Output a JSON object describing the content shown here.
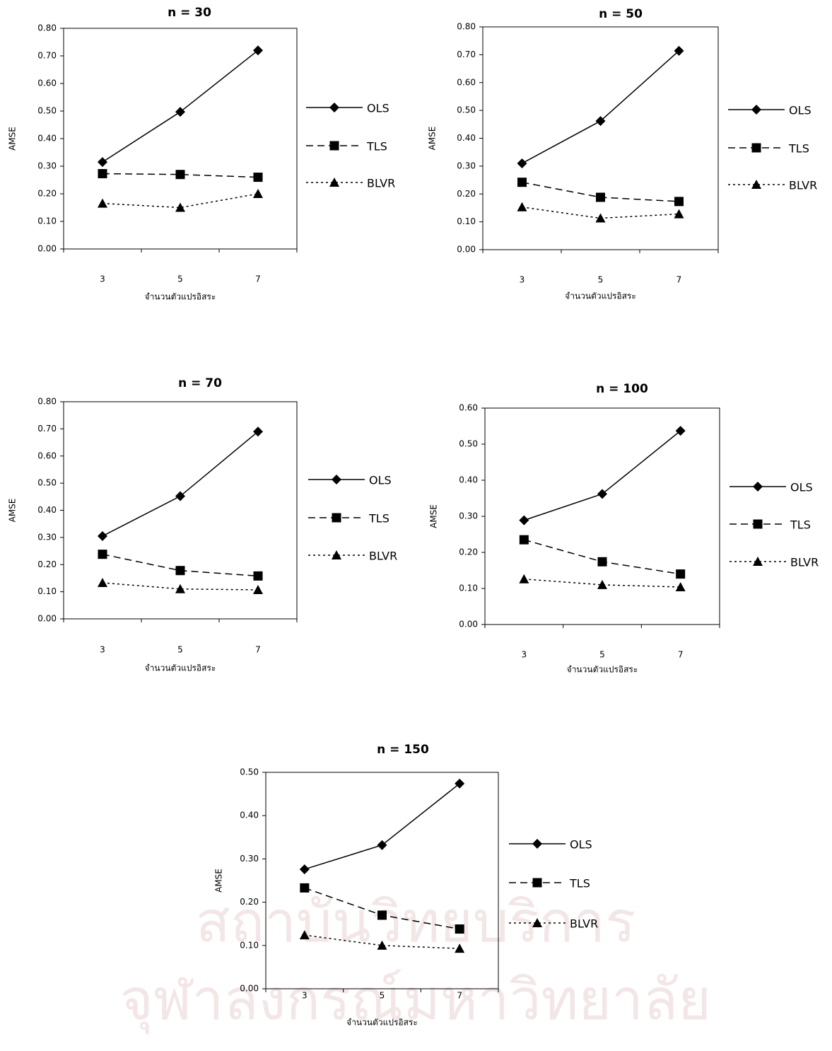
{
  "watermark": [
    "สถาบันวิทยบริการ",
    "จุฬาลงกรณ์มหาวิทยาลัย"
  ],
  "chart_data": [
    {
      "type": "line",
      "title": "n = 30",
      "x_label": "จำนวนตัวแปรอิสระ",
      "y_label": "AMSE",
      "legend": "right",
      "categories": [
        "3",
        "5",
        "7"
      ],
      "ylim": [
        0,
        0.8
      ],
      "yticks": [
        {
          "value": 0,
          "label": "0.00"
        },
        {
          "value": 0.1,
          "label": "0.10"
        },
        {
          "value": 0.2,
          "label": "0.20"
        },
        {
          "value": 0.3,
          "label": "0.30"
        },
        {
          "value": 0.4,
          "label": "0.40"
        },
        {
          "value": 0.5,
          "label": "0.50"
        },
        {
          "value": 0.6,
          "label": "0.60"
        },
        {
          "value": 0.7,
          "label": "0.70"
        },
        {
          "value": 0.8,
          "label": "0.80"
        }
      ],
      "series": [
        {
          "name": "OLS",
          "color": "#000000",
          "values": [
            0.315,
            0.497,
            0.72
          ]
        },
        {
          "name": "TLS",
          "color": "#000000",
          "values": [
            0.273,
            0.27,
            0.26
          ]
        },
        {
          "name": "BLVR",
          "color": "#000000",
          "values": [
            0.165,
            0.15,
            0.2
          ]
        }
      ]
    },
    {
      "type": "line",
      "title": "n = 50",
      "x_label": "จำนวนตัวแปรอิสระ",
      "y_label": "AMSE",
      "legend": "right",
      "categories": [
        "3",
        "5",
        "7"
      ],
      "ylim": [
        0,
        0.8
      ],
      "yticks": [
        {
          "value": 0,
          "label": "0.00"
        },
        {
          "value": 0.1,
          "label": "0.10"
        },
        {
          "value": 0.2,
          "label": "0.20"
        },
        {
          "value": 0.3,
          "label": "0.30"
        },
        {
          "value": 0.4,
          "label": "0.40"
        },
        {
          "value": 0.5,
          "label": "0.50"
        },
        {
          "value": 0.6,
          "label": "0.60"
        },
        {
          "value": 0.7,
          "label": "0.70"
        },
        {
          "value": 0.8,
          "label": "0.80"
        }
      ],
      "series": [
        {
          "name": "OLS",
          "color": "#000000",
          "values": [
            0.31,
            0.462,
            0.714
          ]
        },
        {
          "name": "TLS",
          "color": "#000000",
          "values": [
            0.242,
            0.188,
            0.173
          ]
        },
        {
          "name": "BLVR",
          "color": "#000000",
          "values": [
            0.153,
            0.113,
            0.128
          ]
        }
      ]
    },
    {
      "type": "line",
      "title": "n = 70",
      "x_label": "จำนวนตัวแปรอิสระ",
      "y_label": "AMSE",
      "legend": "right",
      "categories": [
        "3",
        "5",
        "7"
      ],
      "ylim": [
        0,
        0.8
      ],
      "yticks": [
        {
          "value": 0,
          "label": "0.00"
        },
        {
          "value": 0.1,
          "label": "0.10"
        },
        {
          "value": 0.2,
          "label": "0.20"
        },
        {
          "value": 0.3,
          "label": "0.30"
        },
        {
          "value": 0.4,
          "label": "0.40"
        },
        {
          "value": 0.5,
          "label": "0.50"
        },
        {
          "value": 0.6,
          "label": "0.60"
        },
        {
          "value": 0.7,
          "label": "0.70"
        },
        {
          "value": 0.8,
          "label": "0.80"
        }
      ],
      "series": [
        {
          "name": "OLS",
          "color": "#000000",
          "values": [
            0.305,
            0.452,
            0.69
          ]
        },
        {
          "name": "TLS",
          "color": "#000000",
          "values": [
            0.238,
            0.178,
            0.158
          ]
        },
        {
          "name": "BLVR",
          "color": "#000000",
          "values": [
            0.133,
            0.11,
            0.107
          ]
        }
      ]
    },
    {
      "type": "line",
      "title": "n = 100",
      "x_label": "จำนวนตัวแปรอิสระ",
      "y_label": "AMSE",
      "legend": "right",
      "categories": [
        "3",
        "5",
        "7"
      ],
      "ylim": [
        0,
        0.6
      ],
      "yticks": [
        {
          "value": 0,
          "label": "0.00"
        },
        {
          "value": 0.1,
          "label": "0.10"
        },
        {
          "value": 0.2,
          "label": "0.20"
        },
        {
          "value": 0.3,
          "label": "0.30"
        },
        {
          "value": 0.4,
          "label": "0.40"
        },
        {
          "value": 0.5,
          "label": "0.50"
        },
        {
          "value": 0.6,
          "label": "0.60"
        }
      ],
      "series": [
        {
          "name": "OLS",
          "color": "#000000",
          "values": [
            0.289,
            0.362,
            0.537
          ]
        },
        {
          "name": "TLS",
          "color": "#000000",
          "values": [
            0.235,
            0.174,
            0.14
          ]
        },
        {
          "name": "BLVR",
          "color": "#000000",
          "values": [
            0.126,
            0.11,
            0.104
          ]
        }
      ]
    },
    {
      "type": "line",
      "title": "n = 150",
      "x_label": "จำนวนตัวแปรอิสระ",
      "y_label": "AMSE",
      "legend": "right",
      "categories": [
        "3",
        "5",
        "7"
      ],
      "ylim": [
        0,
        0.5
      ],
      "yticks": [
        {
          "value": 0,
          "label": "0.00"
        },
        {
          "value": 0.1,
          "label": "0.10"
        },
        {
          "value": 0.2,
          "label": "0.20"
        },
        {
          "value": 0.3,
          "label": "0.30"
        },
        {
          "value": 0.4,
          "label": "0.40"
        },
        {
          "value": 0.5,
          "label": "0.50"
        }
      ],
      "series": [
        {
          "name": "OLS",
          "color": "#000000",
          "values": [
            0.276,
            0.332,
            0.474
          ]
        },
        {
          "name": "TLS",
          "color": "#000000",
          "values": [
            0.233,
            0.17,
            0.138
          ]
        },
        {
          "name": "BLVR",
          "color": "#000000",
          "values": [
            0.124,
            0.1,
            0.093
          ]
        }
      ]
    }
  ]
}
